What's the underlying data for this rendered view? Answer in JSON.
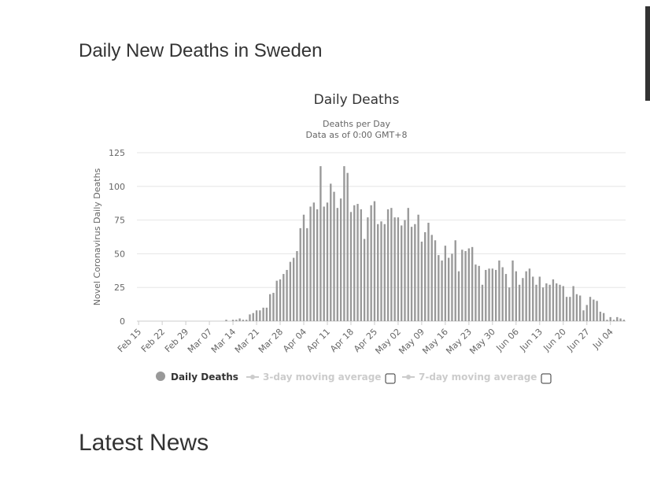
{
  "page": {
    "section_title": "Daily New Deaths in Sweden",
    "latest_news_title": "Latest News"
  },
  "chart_data": {
    "type": "bar",
    "title": "Daily Deaths",
    "subtitle_lines": [
      "Deaths per Day",
      "Data as of 0:00 GMT+8"
    ],
    "xlabel": "",
    "ylabel": "Novel Coronavirus Daily Deaths",
    "ylim": [
      0,
      125
    ],
    "yticks": [
      0,
      25,
      50,
      75,
      100,
      125
    ],
    "xtick_labels": [
      "Feb 15",
      "Feb 22",
      "Feb 29",
      "Mar 07",
      "Mar 14",
      "Mar 21",
      "Mar 28",
      "Apr 04",
      "Apr 11",
      "Apr 18",
      "Apr 25",
      "May 02",
      "May 09",
      "May 16",
      "May 23",
      "May 30",
      "Jun 06",
      "Jun 13",
      "Jun 20",
      "Jun 27",
      "Jul 04"
    ],
    "xtick_every": 7,
    "start_date": "Feb 15",
    "grid": true,
    "bar_color": "#999999",
    "series": [
      {
        "name": "Daily Deaths",
        "values": [
          0,
          0,
          0,
          0,
          0,
          0,
          0,
          0,
          0,
          0,
          0,
          0,
          0,
          0,
          0,
          0,
          0,
          0,
          0,
          0,
          0,
          0,
          0,
          0,
          0,
          0,
          1,
          0,
          1,
          1,
          2,
          1,
          1,
          5,
          6,
          8,
          8,
          10,
          10,
          20,
          21,
          30,
          31,
          35,
          38,
          44,
          47,
          52,
          69,
          79,
          69,
          85,
          88,
          83,
          115,
          85,
          88,
          102,
          96,
          84,
          91,
          115,
          110,
          81,
          86,
          87,
          83,
          61,
          77,
          86,
          89,
          72,
          74,
          72,
          83,
          84,
          77,
          77,
          71,
          75,
          84,
          70,
          72,
          79,
          59,
          66,
          73,
          64,
          60,
          49,
          45,
          56,
          47,
          50,
          60,
          37,
          53,
          52,
          54,
          55,
          42,
          41,
          27,
          38,
          39,
          39,
          38,
          45,
          40,
          35,
          25,
          45,
          37,
          27,
          32,
          37,
          39,
          33,
          27,
          33,
          25,
          28,
          27,
          31,
          28,
          27,
          26,
          18,
          18,
          26,
          20,
          19,
          8,
          12,
          18,
          16,
          15,
          7,
          6,
          1,
          3,
          1,
          3,
          2,
          1
        ]
      },
      {
        "name": "3-day moving average",
        "values": []
      },
      {
        "name": "7-day moving average",
        "values": []
      }
    ],
    "legend": {
      "position": "bottom",
      "items": [
        {
          "label": "Daily Deaths",
          "color": "#999999",
          "active": true
        },
        {
          "label": "3-day moving average",
          "color": "#cccccc",
          "active": false
        },
        {
          "label": "7-day moving average",
          "color": "#cccccc",
          "active": false
        }
      ]
    }
  }
}
